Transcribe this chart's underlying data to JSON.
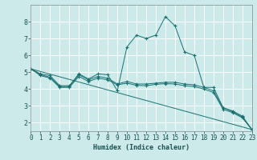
{
  "xlabel": "Humidex (Indice chaleur)",
  "ylabel": "",
  "bg_color": "#cceaea",
  "grid_color": "#ffffff",
  "line_color": "#1a7070",
  "xlim": [
    0,
    23
  ],
  "ylim": [
    1.5,
    9.0
  ],
  "yticks": [
    2,
    3,
    4,
    5,
    6,
    7,
    8
  ],
  "xticks": [
    0,
    1,
    2,
    3,
    4,
    5,
    6,
    7,
    8,
    9,
    10,
    11,
    12,
    13,
    14,
    15,
    16,
    17,
    18,
    19,
    20,
    21,
    22,
    23
  ],
  "series": [
    {
      "x": [
        0,
        1,
        2,
        3,
        4,
        5,
        6,
        7,
        8,
        9,
        10,
        11,
        12,
        13,
        14,
        15,
        16,
        17,
        18,
        19,
        20,
        21,
        22,
        23
      ],
      "y": [
        5.2,
        4.9,
        4.8,
        4.2,
        4.2,
        4.9,
        4.6,
        4.9,
        4.85,
        3.9,
        6.5,
        7.2,
        7.0,
        7.2,
        8.3,
        7.75,
        6.2,
        6.0,
        4.1,
        4.1,
        2.9,
        2.7,
        2.4,
        1.6
      ]
    },
    {
      "x": [
        0,
        1,
        2,
        3,
        4,
        5,
        6,
        7,
        8,
        9,
        10,
        11,
        12,
        13,
        14,
        15,
        16,
        17,
        18,
        19,
        20,
        21,
        22,
        23
      ],
      "y": [
        5.2,
        4.85,
        4.7,
        4.15,
        4.15,
        4.85,
        4.55,
        4.75,
        4.65,
        4.3,
        4.45,
        4.3,
        4.3,
        4.35,
        4.4,
        4.4,
        4.3,
        4.25,
        4.1,
        3.9,
        2.9,
        2.65,
        2.35,
        1.6
      ]
    },
    {
      "x": [
        0,
        1,
        2,
        3,
        4,
        5,
        6,
        7,
        8,
        9,
        10,
        11,
        12,
        13,
        14,
        15,
        16,
        17,
        18,
        19,
        20,
        21,
        22,
        23
      ],
      "y": [
        5.2,
        4.8,
        4.65,
        4.1,
        4.1,
        4.75,
        4.45,
        4.65,
        4.55,
        4.25,
        4.35,
        4.22,
        4.2,
        4.28,
        4.32,
        4.3,
        4.2,
        4.15,
        4.0,
        3.8,
        2.8,
        2.6,
        2.3,
        1.6
      ]
    },
    {
      "x": [
        0,
        23
      ],
      "y": [
        5.2,
        1.6
      ]
    }
  ]
}
